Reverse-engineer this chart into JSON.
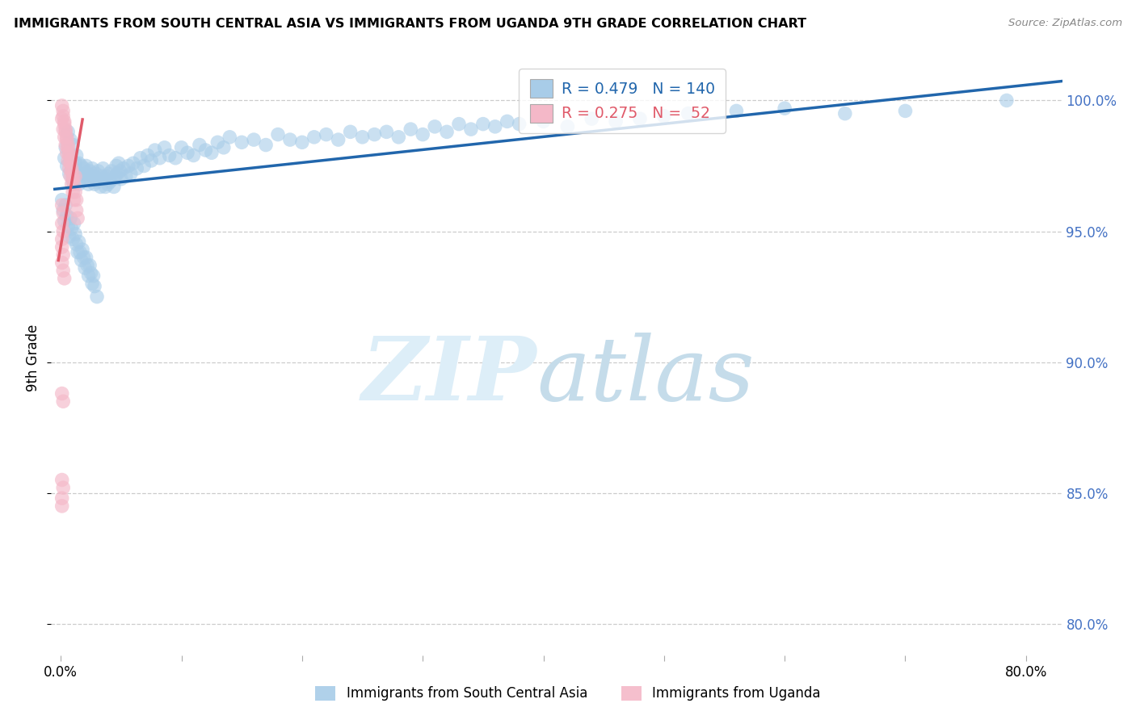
{
  "title": "IMMIGRANTS FROM SOUTH CENTRAL ASIA VS IMMIGRANTS FROM UGANDA 9TH GRADE CORRELATION CHART",
  "source": "Source: ZipAtlas.com",
  "ylabel": "9th Grade",
  "xlim_min": -0.008,
  "xlim_max": 0.83,
  "ylim_min": 0.788,
  "ylim_max": 1.015,
  "blue_R": 0.479,
  "blue_N": 140,
  "pink_R": 0.275,
  "pink_N": 52,
  "blue_color": "#a8cce8",
  "pink_color": "#f4b8c8",
  "blue_line_color": "#2166ac",
  "pink_line_color": "#e05a6a",
  "legend_label_blue": "Immigrants from South Central Asia",
  "legend_label_pink": "Immigrants from Uganda",
  "ytick_positions": [
    0.8,
    0.85,
    0.9,
    0.95,
    1.0
  ],
  "ytick_labels": [
    "80.0%",
    "85.0%",
    "90.0%",
    "95.0%",
    "100.0%"
  ],
  "xtick_positions": [
    0.0,
    0.1,
    0.2,
    0.3,
    0.4,
    0.5,
    0.6,
    0.7,
    0.8
  ],
  "xtick_labels": [
    "0.0%",
    "",
    "",
    "",
    "",
    "",
    "",
    "",
    "80.0%"
  ],
  "blue_x": [
    0.003,
    0.004,
    0.005,
    0.006,
    0.007,
    0.008,
    0.008,
    0.009,
    0.01,
    0.01,
    0.011,
    0.012,
    0.013,
    0.014,
    0.015,
    0.015,
    0.016,
    0.017,
    0.018,
    0.019,
    0.02,
    0.021,
    0.022,
    0.023,
    0.024,
    0.025,
    0.026,
    0.027,
    0.028,
    0.029,
    0.03,
    0.031,
    0.032,
    0.033,
    0.034,
    0.035,
    0.036,
    0.037,
    0.038,
    0.039,
    0.04,
    0.041,
    0.042,
    0.043,
    0.044,
    0.045,
    0.046,
    0.047,
    0.048,
    0.049,
    0.05,
    0.052,
    0.054,
    0.056,
    0.058,
    0.06,
    0.063,
    0.066,
    0.069,
    0.072,
    0.075,
    0.078,
    0.082,
    0.086,
    0.09,
    0.095,
    0.1,
    0.105,
    0.11,
    0.115,
    0.12,
    0.125,
    0.13,
    0.135,
    0.14,
    0.15,
    0.16,
    0.17,
    0.18,
    0.19,
    0.2,
    0.21,
    0.22,
    0.23,
    0.24,
    0.25,
    0.26,
    0.27,
    0.28,
    0.29,
    0.3,
    0.31,
    0.32,
    0.33,
    0.34,
    0.35,
    0.36,
    0.37,
    0.38,
    0.4,
    0.42,
    0.44,
    0.46,
    0.48,
    0.5,
    0.52,
    0.56,
    0.6,
    0.65,
    0.7,
    0.001,
    0.002,
    0.003,
    0.004,
    0.005,
    0.006,
    0.007,
    0.008,
    0.009,
    0.01,
    0.011,
    0.012,
    0.013,
    0.014,
    0.015,
    0.016,
    0.017,
    0.018,
    0.019,
    0.02,
    0.021,
    0.022,
    0.023,
    0.024,
    0.025,
    0.026,
    0.027,
    0.028,
    0.03,
    0.784
  ],
  "blue_y": [
    0.978,
    0.982,
    0.975,
    0.988,
    0.972,
    0.979,
    0.985,
    0.976,
    0.983,
    0.969,
    0.973,
    0.976,
    0.979,
    0.972,
    0.976,
    0.968,
    0.972,
    0.975,
    0.97,
    0.974,
    0.971,
    0.975,
    0.972,
    0.968,
    0.973,
    0.97,
    0.974,
    0.971,
    0.968,
    0.972,
    0.969,
    0.973,
    0.97,
    0.967,
    0.971,
    0.974,
    0.97,
    0.967,
    0.971,
    0.968,
    0.972,
    0.969,
    0.973,
    0.97,
    0.967,
    0.971,
    0.975,
    0.972,
    0.976,
    0.973,
    0.97,
    0.974,
    0.971,
    0.975,
    0.972,
    0.976,
    0.974,
    0.978,
    0.975,
    0.979,
    0.977,
    0.981,
    0.978,
    0.982,
    0.979,
    0.978,
    0.982,
    0.98,
    0.979,
    0.983,
    0.981,
    0.98,
    0.984,
    0.982,
    0.986,
    0.984,
    0.985,
    0.983,
    0.987,
    0.985,
    0.984,
    0.986,
    0.987,
    0.985,
    0.988,
    0.986,
    0.987,
    0.988,
    0.986,
    0.989,
    0.987,
    0.99,
    0.988,
    0.991,
    0.989,
    0.991,
    0.99,
    0.992,
    0.991,
    0.992,
    0.99,
    0.993,
    0.992,
    0.993,
    0.994,
    0.995,
    0.996,
    0.997,
    0.995,
    0.996,
    0.962,
    0.958,
    0.954,
    0.96,
    0.956,
    0.952,
    0.948,
    0.955,
    0.951,
    0.947,
    0.953,
    0.949,
    0.945,
    0.942,
    0.946,
    0.942,
    0.939,
    0.943,
    0.94,
    0.936,
    0.94,
    0.937,
    0.933,
    0.937,
    0.934,
    0.93,
    0.933,
    0.929,
    0.925,
    1.0
  ],
  "pink_x": [
    0.001,
    0.002,
    0.002,
    0.003,
    0.003,
    0.004,
    0.004,
    0.005,
    0.005,
    0.006,
    0.006,
    0.007,
    0.007,
    0.008,
    0.008,
    0.009,
    0.009,
    0.01,
    0.01,
    0.011,
    0.011,
    0.012,
    0.012,
    0.013,
    0.013,
    0.014,
    0.001,
    0.002,
    0.003,
    0.004,
    0.005,
    0.006,
    0.007,
    0.008,
    0.009,
    0.01,
    0.001,
    0.002,
    0.001,
    0.002,
    0.001,
    0.001,
    0.002,
    0.001,
    0.002,
    0.003,
    0.001,
    0.002,
    0.001,
    0.002,
    0.001,
    0.001
  ],
  "pink_y": [
    0.993,
    0.989,
    0.996,
    0.986,
    0.992,
    0.983,
    0.989,
    0.98,
    0.986,
    0.977,
    0.983,
    0.974,
    0.98,
    0.971,
    0.977,
    0.968,
    0.974,
    0.965,
    0.971,
    0.968,
    0.962,
    0.965,
    0.971,
    0.962,
    0.958,
    0.955,
    0.998,
    0.994,
    0.991,
    0.988,
    0.985,
    0.982,
    0.979,
    0.976,
    0.973,
    0.97,
    0.96,
    0.957,
    0.953,
    0.95,
    0.947,
    0.944,
    0.941,
    0.938,
    0.935,
    0.932,
    0.888,
    0.885,
    0.855,
    0.852,
    0.848,
    0.845
  ]
}
